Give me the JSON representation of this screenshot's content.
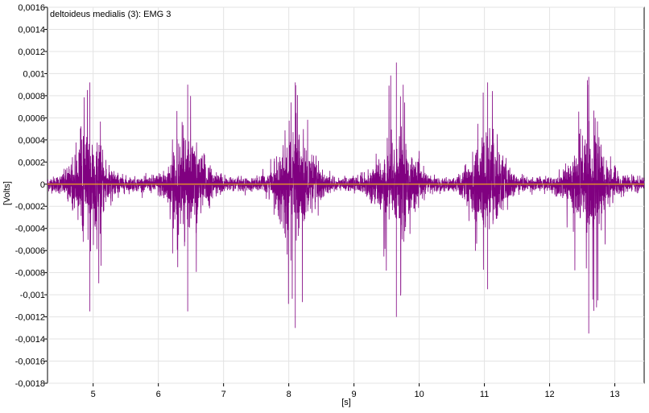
{
  "chart_data": {
    "type": "line",
    "title": "deltoideus medialis (3): EMG 3",
    "xlabel": "[s]",
    "ylabel": "[Volts]",
    "xlim": [
      4.3,
      13.45
    ],
    "ylim": [
      -0.0018,
      0.0016
    ],
    "x_ticks": [
      5,
      6,
      7,
      8,
      9,
      10,
      11,
      12,
      13
    ],
    "x_tick_labels": [
      "5",
      "6",
      "7",
      "8",
      "9",
      "10",
      "11",
      "12",
      "13"
    ],
    "y_ticks": [
      0.0016,
      0.0014,
      0.0012,
      0.001,
      0.0008,
      0.0006,
      0.0004,
      0.0002,
      0,
      -0.0002,
      -0.0004,
      -0.0006,
      -0.0008,
      -0.001,
      -0.0012,
      -0.0014,
      -0.0016,
      -0.0018
    ],
    "y_tick_labels": [
      "0,0016",
      "0,0014",
      "0,0012",
      "0,001",
      "0,0008",
      "0,0006",
      "0,0004",
      "0,0002",
      "0",
      "-0,0002",
      "-0,0004",
      "-0,0006",
      "-0,0008",
      "-0,001",
      "-0,0012",
      "-0,0014",
      "-0,0016",
      "-0,0018"
    ],
    "grid": true,
    "series": [
      {
        "color": "#800080",
        "baseline_noise": 3e-05,
        "bursts": [
          {
            "center": 4.95,
            "width": 0.42,
            "peak_pos": 0.00092,
            "peak_neg": -0.00115
          },
          {
            "center": 6.45,
            "width": 0.45,
            "peak_pos": 0.0009,
            "peak_neg": -0.00115
          },
          {
            "center": 8.1,
            "width": 0.45,
            "peak_pos": 0.00092,
            "peak_neg": -0.0013
          },
          {
            "center": 9.65,
            "width": 0.45,
            "peak_pos": 0.0011,
            "peak_neg": -0.0012
          },
          {
            "center": 11.05,
            "width": 0.42,
            "peak_pos": 0.00092,
            "peak_neg": -0.00095
          },
          {
            "center": 12.6,
            "width": 0.45,
            "peak_pos": 0.00097,
            "peak_neg": -0.00135
          }
        ]
      }
    ],
    "reference_line": {
      "y": 0,
      "color": "#f0a020"
    }
  }
}
